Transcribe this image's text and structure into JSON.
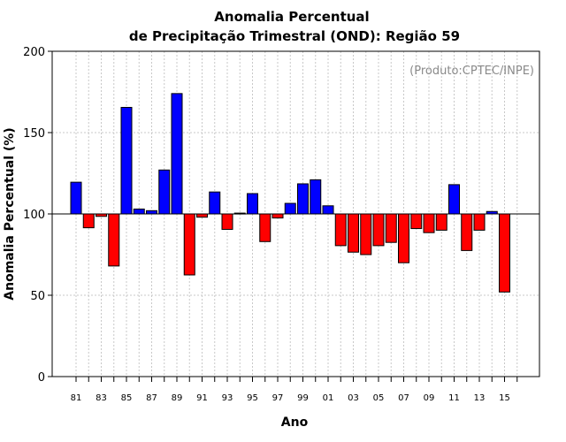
{
  "chart_data": {
    "type": "bar",
    "title": "Anomalia Percentual",
    "subtitle": "de Precipitação Trimestral (OND): Região 59",
    "credit": "(Produto:CPTEC/INPE)",
    "xlabel": "Ano",
    "ylabel": "Anomalia Percentual (%)",
    "ylim": [
      0,
      200
    ],
    "yticks": [
      0,
      50,
      100,
      150,
      200
    ],
    "baseline": 100,
    "grid": true,
    "colors": {
      "above": "#0000ff",
      "below": "#ff0000",
      "grid": "#c8c8c8"
    },
    "categories": [
      "81",
      "82",
      "83",
      "84",
      "85",
      "86",
      "87",
      "88",
      "89",
      "90",
      "91",
      "92",
      "93",
      "94",
      "95",
      "96",
      "97",
      "98",
      "99",
      "00",
      "01",
      "02",
      "03",
      "04",
      "05",
      "06",
      "07",
      "08",
      "09",
      "10",
      "11",
      "12",
      "13",
      "14",
      "15"
    ],
    "xtick_labels": [
      "81",
      "83",
      "85",
      "87",
      "89",
      "91",
      "93",
      "95",
      "97",
      "99",
      "01",
      "03",
      "05",
      "07",
      "09",
      "11",
      "13",
      "15"
    ],
    "values": [
      119.5,
      91.5,
      98.5,
      68,
      165.5,
      103,
      102,
      127,
      174,
      62.5,
      98,
      113.5,
      90.5,
      100.5,
      112.5,
      83,
      97.5,
      106.5,
      118.5,
      121,
      105,
      80.5,
      76.5,
      75,
      80.5,
      82.5,
      70,
      91,
      88.5,
      90,
      118,
      77.5,
      90,
      101.5,
      52
    ]
  }
}
